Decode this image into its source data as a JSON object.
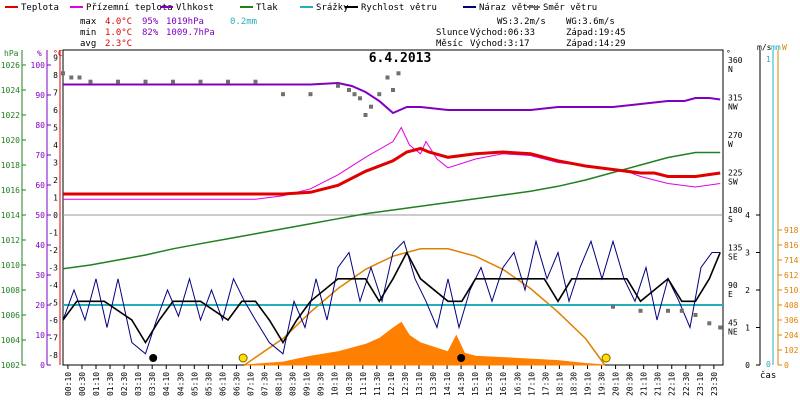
{
  "chart_data": {
    "type": "line",
    "title": "6.4.2013",
    "legend": [
      {
        "label": "Teplota",
        "color": "#e00000"
      },
      {
        "label": "Přízemní teplota",
        "color": "#e000e0"
      },
      {
        "label": "Vlhkost",
        "color": "#8000c0"
      },
      {
        "label": "Tlak",
        "color": "#208020"
      },
      {
        "label": "Srážky",
        "color": "#20b0c0"
      },
      {
        "label": "Rychlost větru",
        "color": "#000000"
      },
      {
        "label": "Náraz větru",
        "color": "#000080"
      },
      {
        "label": "Směr větru",
        "color": "#707070"
      }
    ],
    "stats": {
      "max": {
        "label": "max",
        "temp": "4.0°C",
        "hum": "95%",
        "press": "1019hPa",
        "rain": "0.2mm"
      },
      "min": {
        "label": "min",
        "temp": "1.0°C",
        "hum": "82%",
        "press": "1009.7hPa"
      },
      "avg": {
        "label": "avg",
        "temp": "2.3°C"
      }
    },
    "info": {
      "ws": "WS:3.2m/s",
      "wg": "WG:3.6m/s",
      "sun_label": "Slunce",
      "sun_rise": "Východ:06:33",
      "sun_set": "Západ:19:45",
      "moon_label": "Měsíc",
      "moon_rise": "Východ:3:17",
      "moon_set": "Západ:14:29"
    },
    "axes": {
      "hpa": {
        "label": "hPa",
        "color": "#208020",
        "ticks": [
          "1026",
          "1024",
          "1022",
          "1020",
          "1018",
          "1016",
          "1014",
          "1012",
          "1010",
          "1008",
          "1006",
          "1004",
          "1002"
        ]
      },
      "pct": {
        "label": "%",
        "color": "#8000c0",
        "ticks": [
          "100",
          "90",
          "80",
          "70",
          "60",
          "50",
          "40",
          "30",
          "20",
          "10",
          "0"
        ]
      },
      "degc": {
        "label": "°C",
        "color": "#e00000",
        "ticks": [
          "9",
          "8",
          "7",
          "6",
          "5",
          "4",
          "3",
          "2",
          "1",
          "0",
          "-1",
          "-2",
          "-3",
          "-4",
          "-5",
          "-6",
          "-7",
          "-8",
          "-9"
        ]
      },
      "dir": {
        "label": "°",
        "ticks": [
          {
            "v": "360",
            "d": "N"
          },
          {
            "v": "315",
            "d": "NW"
          },
          {
            "v": "270",
            "d": "W"
          },
          {
            "v": "225",
            "d": "SW"
          },
          {
            "v": "180",
            "d": "S"
          },
          {
            "v": "135",
            "d": "SE"
          },
          {
            "v": "90",
            "d": "E"
          },
          {
            "v": "45",
            "d": "NE"
          }
        ]
      },
      "ms": {
        "label": "m/s",
        "ticks": [
          "4",
          "3",
          "2",
          "1",
          "0"
        ]
      },
      "mm": {
        "label": "mm",
        "color": "#20b0c0",
        "ticks": [
          "1",
          "0"
        ]
      },
      "w": {
        "label": "W",
        "color": "#e08000",
        "ticks": [
          "918",
          "816",
          "714",
          "612",
          "510",
          "408",
          "306",
          "204",
          "102",
          "0"
        ]
      },
      "x_unit": "čas",
      "x_ticks": [
        "00:10",
        "00:30",
        "01:10",
        "01:30",
        "02:30",
        "03:10",
        "03:30",
        "04:10",
        "04:30",
        "05:10",
        "05:30",
        "06:10",
        "06:30",
        "07:10",
        "07:30",
        "08:10",
        "08:30",
        "09:10",
        "09:30",
        "10:10",
        "10:30",
        "11:10",
        "11:30",
        "12:10",
        "12:30",
        "13:10",
        "13:30",
        "14:10",
        "14:30",
        "15:10",
        "15:30",
        "16:10",
        "16:30",
        "17:10",
        "17:30",
        "18:10",
        "18:30",
        "19:10",
        "19:30",
        "20:10",
        "20:30",
        "21:10",
        "21:30",
        "22:10",
        "22:30",
        "23:10",
        "23:30"
      ]
    },
    "series": {
      "temp": [
        [
          0,
          1.2
        ],
        [
          1,
          1.2
        ],
        [
          2,
          1.2
        ],
        [
          3,
          1.2
        ],
        [
          4,
          1.2
        ],
        [
          5,
          1.2
        ],
        [
          6,
          1.2
        ],
        [
          7,
          1.2
        ],
        [
          8,
          1.2
        ],
        [
          9,
          1.3
        ],
        [
          10,
          1.7
        ],
        [
          11,
          2.5
        ],
        [
          12,
          3.1
        ],
        [
          12.5,
          3.6
        ],
        [
          13,
          3.8
        ],
        [
          13.3,
          3.6
        ],
        [
          14,
          3.3
        ],
        [
          15,
          3.5
        ],
        [
          16,
          3.6
        ],
        [
          17,
          3.5
        ],
        [
          18,
          3.1
        ],
        [
          19,
          2.8
        ],
        [
          20,
          2.6
        ],
        [
          21,
          2.4
        ],
        [
          21.5,
          2.4
        ],
        [
          22,
          2.2
        ],
        [
          23,
          2.2
        ],
        [
          23.9,
          2.4
        ]
      ],
      "ground": [
        [
          0,
          0.9
        ],
        [
          4,
          0.9
        ],
        [
          7,
          0.9
        ],
        [
          8,
          1.1
        ],
        [
          9,
          1.5
        ],
        [
          10,
          2.3
        ],
        [
          11,
          3.3
        ],
        [
          12,
          4.2
        ],
        [
          12.3,
          5.0
        ],
        [
          12.6,
          4.0
        ],
        [
          13,
          3.5
        ],
        [
          13.2,
          4.2
        ],
        [
          13.6,
          3.2
        ],
        [
          14,
          2.7
        ],
        [
          15,
          3.2
        ],
        [
          16,
          3.5
        ],
        [
          17,
          3.4
        ],
        [
          18,
          3.0
        ],
        [
          19,
          2.8
        ],
        [
          20,
          2.6
        ],
        [
          20.5,
          2.5
        ],
        [
          21,
          2.2
        ],
        [
          22,
          1.8
        ],
        [
          23,
          1.6
        ],
        [
          23.9,
          1.8
        ]
      ],
      "humidity": [
        [
          0,
          93.5
        ],
        [
          1,
          93.5
        ],
        [
          2,
          93.5
        ],
        [
          3,
          93.5
        ],
        [
          4,
          93.5
        ],
        [
          5,
          93.5
        ],
        [
          6,
          93.5
        ],
        [
          7,
          93.5
        ],
        [
          8,
          93.5
        ],
        [
          9,
          93.5
        ],
        [
          10,
          94
        ],
        [
          10.5,
          93
        ],
        [
          11,
          91
        ],
        [
          11.5,
          88
        ],
        [
          12,
          84
        ],
        [
          12.5,
          86
        ],
        [
          13,
          86
        ],
        [
          14,
          85
        ],
        [
          15,
          85
        ],
        [
          16,
          85
        ],
        [
          17,
          85
        ],
        [
          18,
          86
        ],
        [
          19,
          86
        ],
        [
          20,
          86
        ],
        [
          21,
          87
        ],
        [
          22,
          88
        ],
        [
          22.6,
          88
        ],
        [
          23,
          89
        ],
        [
          23.5,
          89
        ],
        [
          23.9,
          88.5
        ]
      ],
      "pressure": [
        [
          0,
          1009.7
        ],
        [
          1,
          1010
        ],
        [
          2,
          1010.4
        ],
        [
          3,
          1010.8
        ],
        [
          4,
          1011.3
        ],
        [
          5,
          1011.7
        ],
        [
          6,
          1012.1
        ],
        [
          7,
          1012.5
        ],
        [
          8,
          1012.9
        ],
        [
          9,
          1013.3
        ],
        [
          10,
          1013.7
        ],
        [
          11,
          1014.1
        ],
        [
          12,
          1014.4
        ],
        [
          13,
          1014.7
        ],
        [
          14,
          1015
        ],
        [
          15,
          1015.3
        ],
        [
          16,
          1015.6
        ],
        [
          17,
          1015.9
        ],
        [
          18,
          1016.3
        ],
        [
          19,
          1016.8
        ],
        [
          20,
          1017.4
        ],
        [
          21,
          1018
        ],
        [
          22,
          1018.6
        ],
        [
          23,
          1019
        ],
        [
          23.9,
          1019
        ]
      ],
      "rain_rate": [
        [
          0,
          0.2
        ],
        [
          23.9,
          0.2
        ]
      ],
      "wind_speed": [
        [
          0,
          1.2
        ],
        [
          0.5,
          1.7
        ],
        [
          1.5,
          1.7
        ],
        [
          2.5,
          1.2
        ],
        [
          3,
          0.6
        ],
        [
          3.5,
          1.2
        ],
        [
          4,
          1.7
        ],
        [
          5,
          1.7
        ],
        [
          6,
          1.2
        ],
        [
          6.5,
          1.7
        ],
        [
          7,
          1.7
        ],
        [
          7.5,
          1.2
        ],
        [
          8,
          0.6
        ],
        [
          8.5,
          1.2
        ],
        [
          9,
          1.7
        ],
        [
          10,
          2.3
        ],
        [
          11,
          2.3
        ],
        [
          11.5,
          1.7
        ],
        [
          12,
          2.3
        ],
        [
          12.5,
          3.0
        ],
        [
          13,
          2.3
        ],
        [
          14,
          1.7
        ],
        [
          14.5,
          1.7
        ],
        [
          15,
          2.3
        ],
        [
          16,
          2.3
        ],
        [
          17,
          2.3
        ],
        [
          17.5,
          2.3
        ],
        [
          18,
          1.7
        ],
        [
          18.5,
          2.3
        ],
        [
          19,
          2.3
        ],
        [
          19.5,
          2.3
        ],
        [
          20,
          2.3
        ],
        [
          20.5,
          2.3
        ],
        [
          21,
          1.7
        ],
        [
          22,
          2.3
        ],
        [
          22.5,
          1.7
        ],
        [
          23,
          1.7
        ],
        [
          23.5,
          2.3
        ],
        [
          23.9,
          3.0
        ]
      ],
      "wind_gust": [
        [
          0,
          1.2
        ],
        [
          0.4,
          2.0
        ],
        [
          0.8,
          1.2
        ],
        [
          1.2,
          2.3
        ],
        [
          1.6,
          1.0
        ],
        [
          2,
          2.3
        ],
        [
          2.5,
          0.6
        ],
        [
          3,
          0.3
        ],
        [
          3.4,
          1.2
        ],
        [
          3.8,
          2.0
        ],
        [
          4.2,
          1.3
        ],
        [
          4.6,
          2.3
        ],
        [
          5,
          1.2
        ],
        [
          5.4,
          2.0
        ],
        [
          5.8,
          1.2
        ],
        [
          6.2,
          2.3
        ],
        [
          6.6,
          1.7
        ],
        [
          7,
          1.2
        ],
        [
          7.5,
          0.6
        ],
        [
          8,
          0.3
        ],
        [
          8.4,
          1.7
        ],
        [
          8.8,
          1.0
        ],
        [
          9.2,
          2.3
        ],
        [
          9.6,
          1.2
        ],
        [
          10,
          2.6
        ],
        [
          10.4,
          3.0
        ],
        [
          10.8,
          1.7
        ],
        [
          11.2,
          2.6
        ],
        [
          11.6,
          1.7
        ],
        [
          12,
          3.0
        ],
        [
          12.4,
          3.3
        ],
        [
          12.8,
          2.3
        ],
        [
          13.2,
          1.7
        ],
        [
          13.6,
          1.0
        ],
        [
          14,
          2.3
        ],
        [
          14.4,
          1.0
        ],
        [
          14.8,
          2.0
        ],
        [
          15.2,
          2.6
        ],
        [
          15.6,
          1.7
        ],
        [
          16,
          2.6
        ],
        [
          16.4,
          3.0
        ],
        [
          16.8,
          2.0
        ],
        [
          17.2,
          3.3
        ],
        [
          17.6,
          2.3
        ],
        [
          18,
          3.0
        ],
        [
          18.4,
          1.7
        ],
        [
          18.8,
          2.6
        ],
        [
          19.2,
          3.3
        ],
        [
          19.6,
          2.3
        ],
        [
          20,
          3.3
        ],
        [
          20.4,
          2.3
        ],
        [
          20.8,
          1.7
        ],
        [
          21.2,
          2.6
        ],
        [
          21.6,
          1.2
        ],
        [
          22,
          2.3
        ],
        [
          22.4,
          1.7
        ],
        [
          22.8,
          1.0
        ],
        [
          23.2,
          2.6
        ],
        [
          23.6,
          3.0
        ],
        [
          23.9,
          3.0
        ]
      ],
      "wind_dir": [
        [
          0,
          350
        ],
        [
          0.3,
          345
        ],
        [
          0.6,
          345
        ],
        [
          1,
          340
        ],
        [
          2,
          340
        ],
        [
          3,
          340
        ],
        [
          4,
          340
        ],
        [
          5,
          340
        ],
        [
          6,
          340
        ],
        [
          7,
          340
        ],
        [
          8,
          325
        ],
        [
          9,
          325
        ],
        [
          10,
          335
        ],
        [
          10.4,
          330
        ],
        [
          10.6,
          325
        ],
        [
          10.8,
          320
        ],
        [
          11,
          300
        ],
        [
          11.2,
          310
        ],
        [
          11.5,
          325
        ],
        [
          11.8,
          345
        ],
        [
          12,
          330
        ],
        [
          12.2,
          350
        ],
        [
          20,
          70
        ],
        [
          21,
          65
        ],
        [
          22,
          65
        ],
        [
          22.5,
          65
        ],
        [
          23,
          60
        ],
        [
          23.5,
          50
        ],
        [
          23.9,
          45
        ]
      ],
      "solar": [
        [
          6.6,
          0
        ],
        [
          8,
          20
        ],
        [
          9,
          60
        ],
        [
          10,
          90
        ],
        [
          11,
          140
        ],
        [
          11.5,
          180
        ],
        [
          12,
          250
        ],
        [
          12.3,
          290
        ],
        [
          12.6,
          200
        ],
        [
          13,
          150
        ],
        [
          13.5,
          120
        ],
        [
          14,
          90
        ],
        [
          14.3,
          200
        ],
        [
          14.6,
          80
        ],
        [
          15,
          60
        ],
        [
          16,
          50
        ],
        [
          17,
          40
        ],
        [
          18,
          30
        ],
        [
          19,
          10
        ],
        [
          19.7,
          0
        ]
      ],
      "solar_theory": [
        [
          6.6,
          0
        ],
        [
          8,
          180
        ],
        [
          9,
          360
        ],
        [
          10,
          520
        ],
        [
          11,
          650
        ],
        [
          12,
          740
        ],
        [
          13,
          790
        ],
        [
          14,
          790
        ],
        [
          15,
          740
        ],
        [
          16,
          650
        ],
        [
          17,
          520
        ],
        [
          18,
          360
        ],
        [
          19,
          180
        ],
        [
          19.7,
          0
        ]
      ]
    },
    "markers": {
      "moonrise_h": 3.28,
      "sunrise_h": 6.55,
      "moonset_h": 14.48,
      "sunset_h": 19.75
    }
  }
}
